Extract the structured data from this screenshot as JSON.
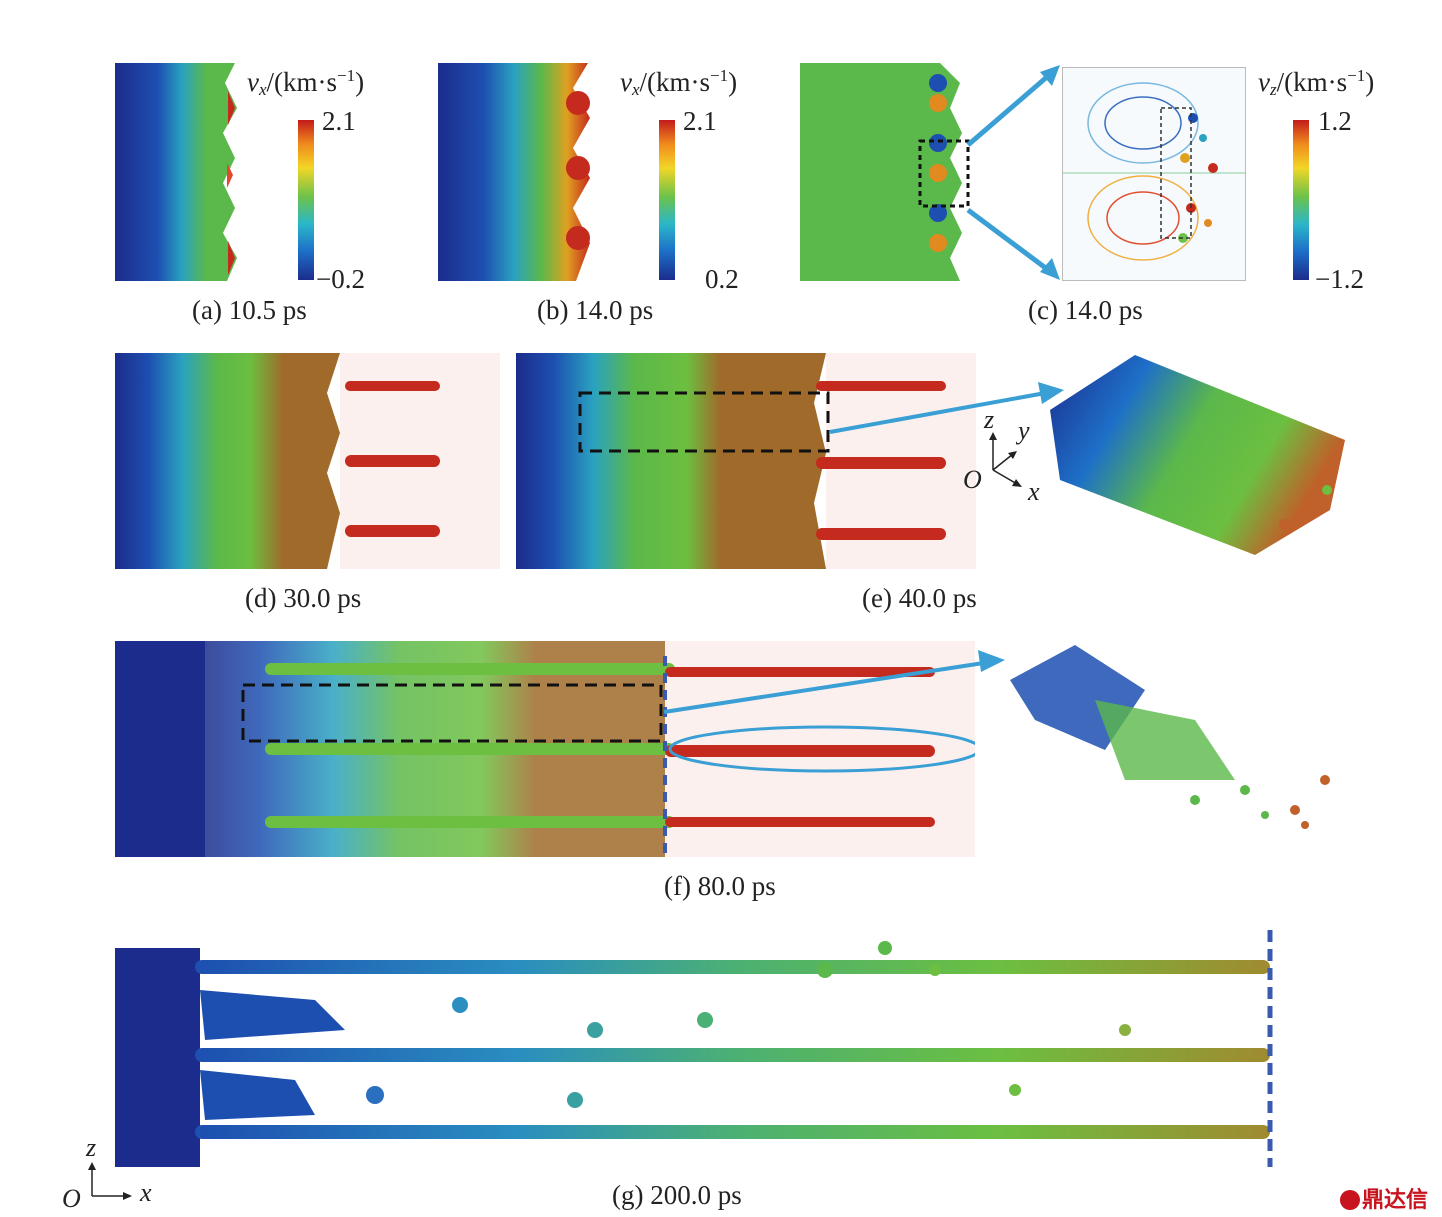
{
  "captions": {
    "a": "(a) 10.5 ps",
    "b": "(b) 14.0 ps",
    "c": "(c) 14.0 ps",
    "d": "(d) 30.0 ps",
    "e": "(e) 40.0 ps",
    "f": "(f) 80.0 ps",
    "g": "(g) 200.0 ps"
  },
  "colorbars": {
    "a": {
      "var": "v",
      "sub": "x",
      "unit": "/(km·s",
      "exp": "−1",
      "close": ")",
      "max": "2.1",
      "min": "−0.2"
    },
    "b": {
      "var": "v",
      "sub": "x",
      "unit": "/(km·s",
      "exp": "−1",
      "close": ")",
      "max": "2.1",
      "min": "0.2"
    },
    "c": {
      "var": "v",
      "sub": "z",
      "unit": "/(km·s",
      "exp": "−1",
      "close": ")",
      "max": "1.2",
      "min": "−1.2"
    }
  },
  "axes_e": {
    "z": "z",
    "y": "y",
    "o": "O",
    "x": "x"
  },
  "axes_g": {
    "z": "z",
    "o": "O",
    "x": "x"
  },
  "colors": {
    "low": "#1c2c8c",
    "mid": "#5bb84a",
    "high": "#c42a1e",
    "arrow": "#3a9fd4",
    "logo": "#c8141e"
  },
  "watermark": "鼎达信"
}
